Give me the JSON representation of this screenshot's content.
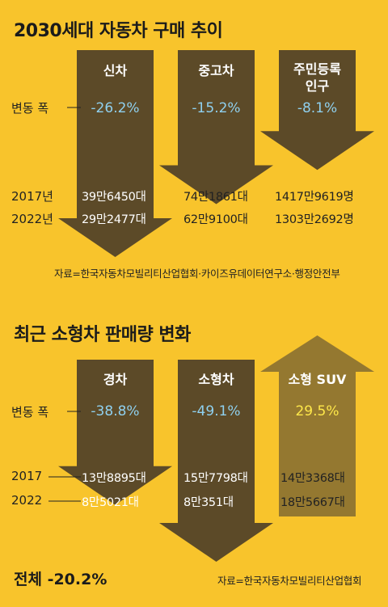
{
  "colors": {
    "bg": "#f8c42c",
    "down_arrow": "#5c4a28",
    "up_arrow": "#947830",
    "neg_pct": "#8fd0ef",
    "pos_pct": "#ffe84a"
  },
  "section1": {
    "title": "2030세대 자동차 구매 추이",
    "row_label": "변동 폭",
    "years": [
      "2017년",
      "2022년"
    ],
    "source": "자료=한국자동차모빌리티산업협회·카이즈유데이터연구소·행정안전부",
    "arrows": [
      {
        "heading": "신차",
        "pct": "-26.2%",
        "change": -26.2,
        "v2017": "39만6450대",
        "v2022": "29만2477대"
      },
      {
        "heading": "중고차",
        "pct": "-15.2%",
        "change": -15.2,
        "v2017": "74만1861대",
        "v2022": "62만9100대"
      },
      {
        "heading_line1": "주민등록",
        "heading_line2": "인구",
        "pct": "-8.1%",
        "change": -8.1,
        "v2017": "1417만9619명",
        "v2022": "1303만2692명"
      }
    ]
  },
  "section2": {
    "title": "최근 소형차 판매량 변화",
    "row_label": "변동 폭",
    "years": [
      "2017",
      "2022"
    ],
    "source": "자료=한국자동차모빌리티산업협회",
    "arrows": [
      {
        "heading": "경차",
        "pct": "-38.8%",
        "change": -38.8,
        "v2017": "13만8895대",
        "v2022": "8만5021대"
      },
      {
        "heading": "소형차",
        "pct": "-49.1%",
        "change": -49.1,
        "v2017": "15만7798대",
        "v2022": "8만351대"
      },
      {
        "heading": "소형 SUV",
        "pct": "29.5%",
        "change": 29.5,
        "v2017": "14만3368대",
        "v2022": "18만5667대"
      }
    ],
    "total": "전체 -20.2%"
  },
  "chart_data": [
    {
      "type": "bar",
      "title": "2030세대 자동차 구매 추이",
      "categories": [
        "신차",
        "중고차",
        "주민등록 인구"
      ],
      "series": [
        {
          "name": "2017년",
          "values": [
            396450,
            741861,
            14179619
          ]
        },
        {
          "name": "2022년",
          "values": [
            292477,
            629100,
            13032692
          ]
        },
        {
          "name": "변동 폭",
          "values": [
            -26.2,
            -15.2,
            -8.1
          ]
        }
      ]
    },
    {
      "type": "bar",
      "title": "최근 소형차 판매량 변화",
      "categories": [
        "경차",
        "소형차",
        "소형 SUV"
      ],
      "series": [
        {
          "name": "2017",
          "values": [
            138895,
            157798,
            143368
          ]
        },
        {
          "name": "2022",
          "values": [
            85021,
            80351,
            185667
          ]
        },
        {
          "name": "변동 폭",
          "values": [
            -38.8,
            -49.1,
            29.5
          ]
        }
      ]
    }
  ]
}
